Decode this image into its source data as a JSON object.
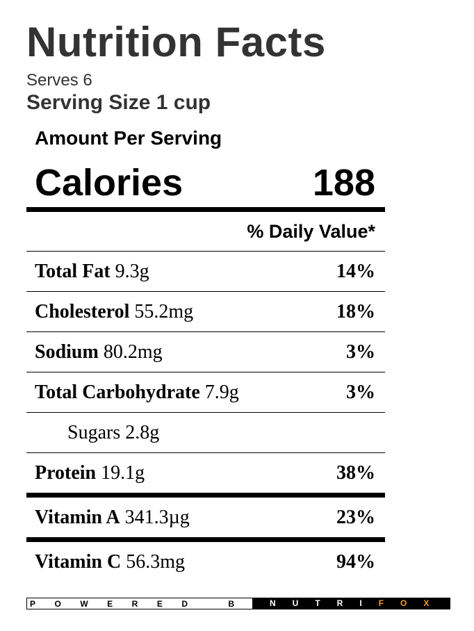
{
  "title": "Nutrition Facts",
  "serves": "Serves 6",
  "serving_size": "Serving Size 1 cup",
  "amount_per_serving": "Amount Per Serving",
  "calories": {
    "label": "Calories",
    "value": "188"
  },
  "daily_value_header": "% Daily Value*",
  "nutrients": [
    {
      "name": "Total Fat",
      "amount": "9.3g",
      "dv": "14%"
    },
    {
      "name": "Cholesterol",
      "amount": "55.2mg",
      "dv": "18%"
    },
    {
      "name": "Sodium",
      "amount": "80.2mg",
      "dv": "3%"
    },
    {
      "name": "Total Carbohydrate",
      "amount": "7.9g",
      "dv": "3%"
    },
    {
      "name": "Sugars",
      "amount": "2.8g",
      "dv": ""
    },
    {
      "name": "Protein",
      "amount": "19.1g",
      "dv": "38%"
    },
    {
      "name": "Vitamin A",
      "amount": "341.3µg",
      "dv": "23%"
    },
    {
      "name": "Vitamin C",
      "amount": "56.3mg",
      "dv": "94%"
    }
  ],
  "footer": {
    "powered_by": "POWERED BY",
    "brand_part1": "NUTRI",
    "brand_part2": "FOX"
  },
  "colors": {
    "title": "#333333",
    "brand_accent": "#f39c33",
    "footer_bg": "#000000"
  }
}
